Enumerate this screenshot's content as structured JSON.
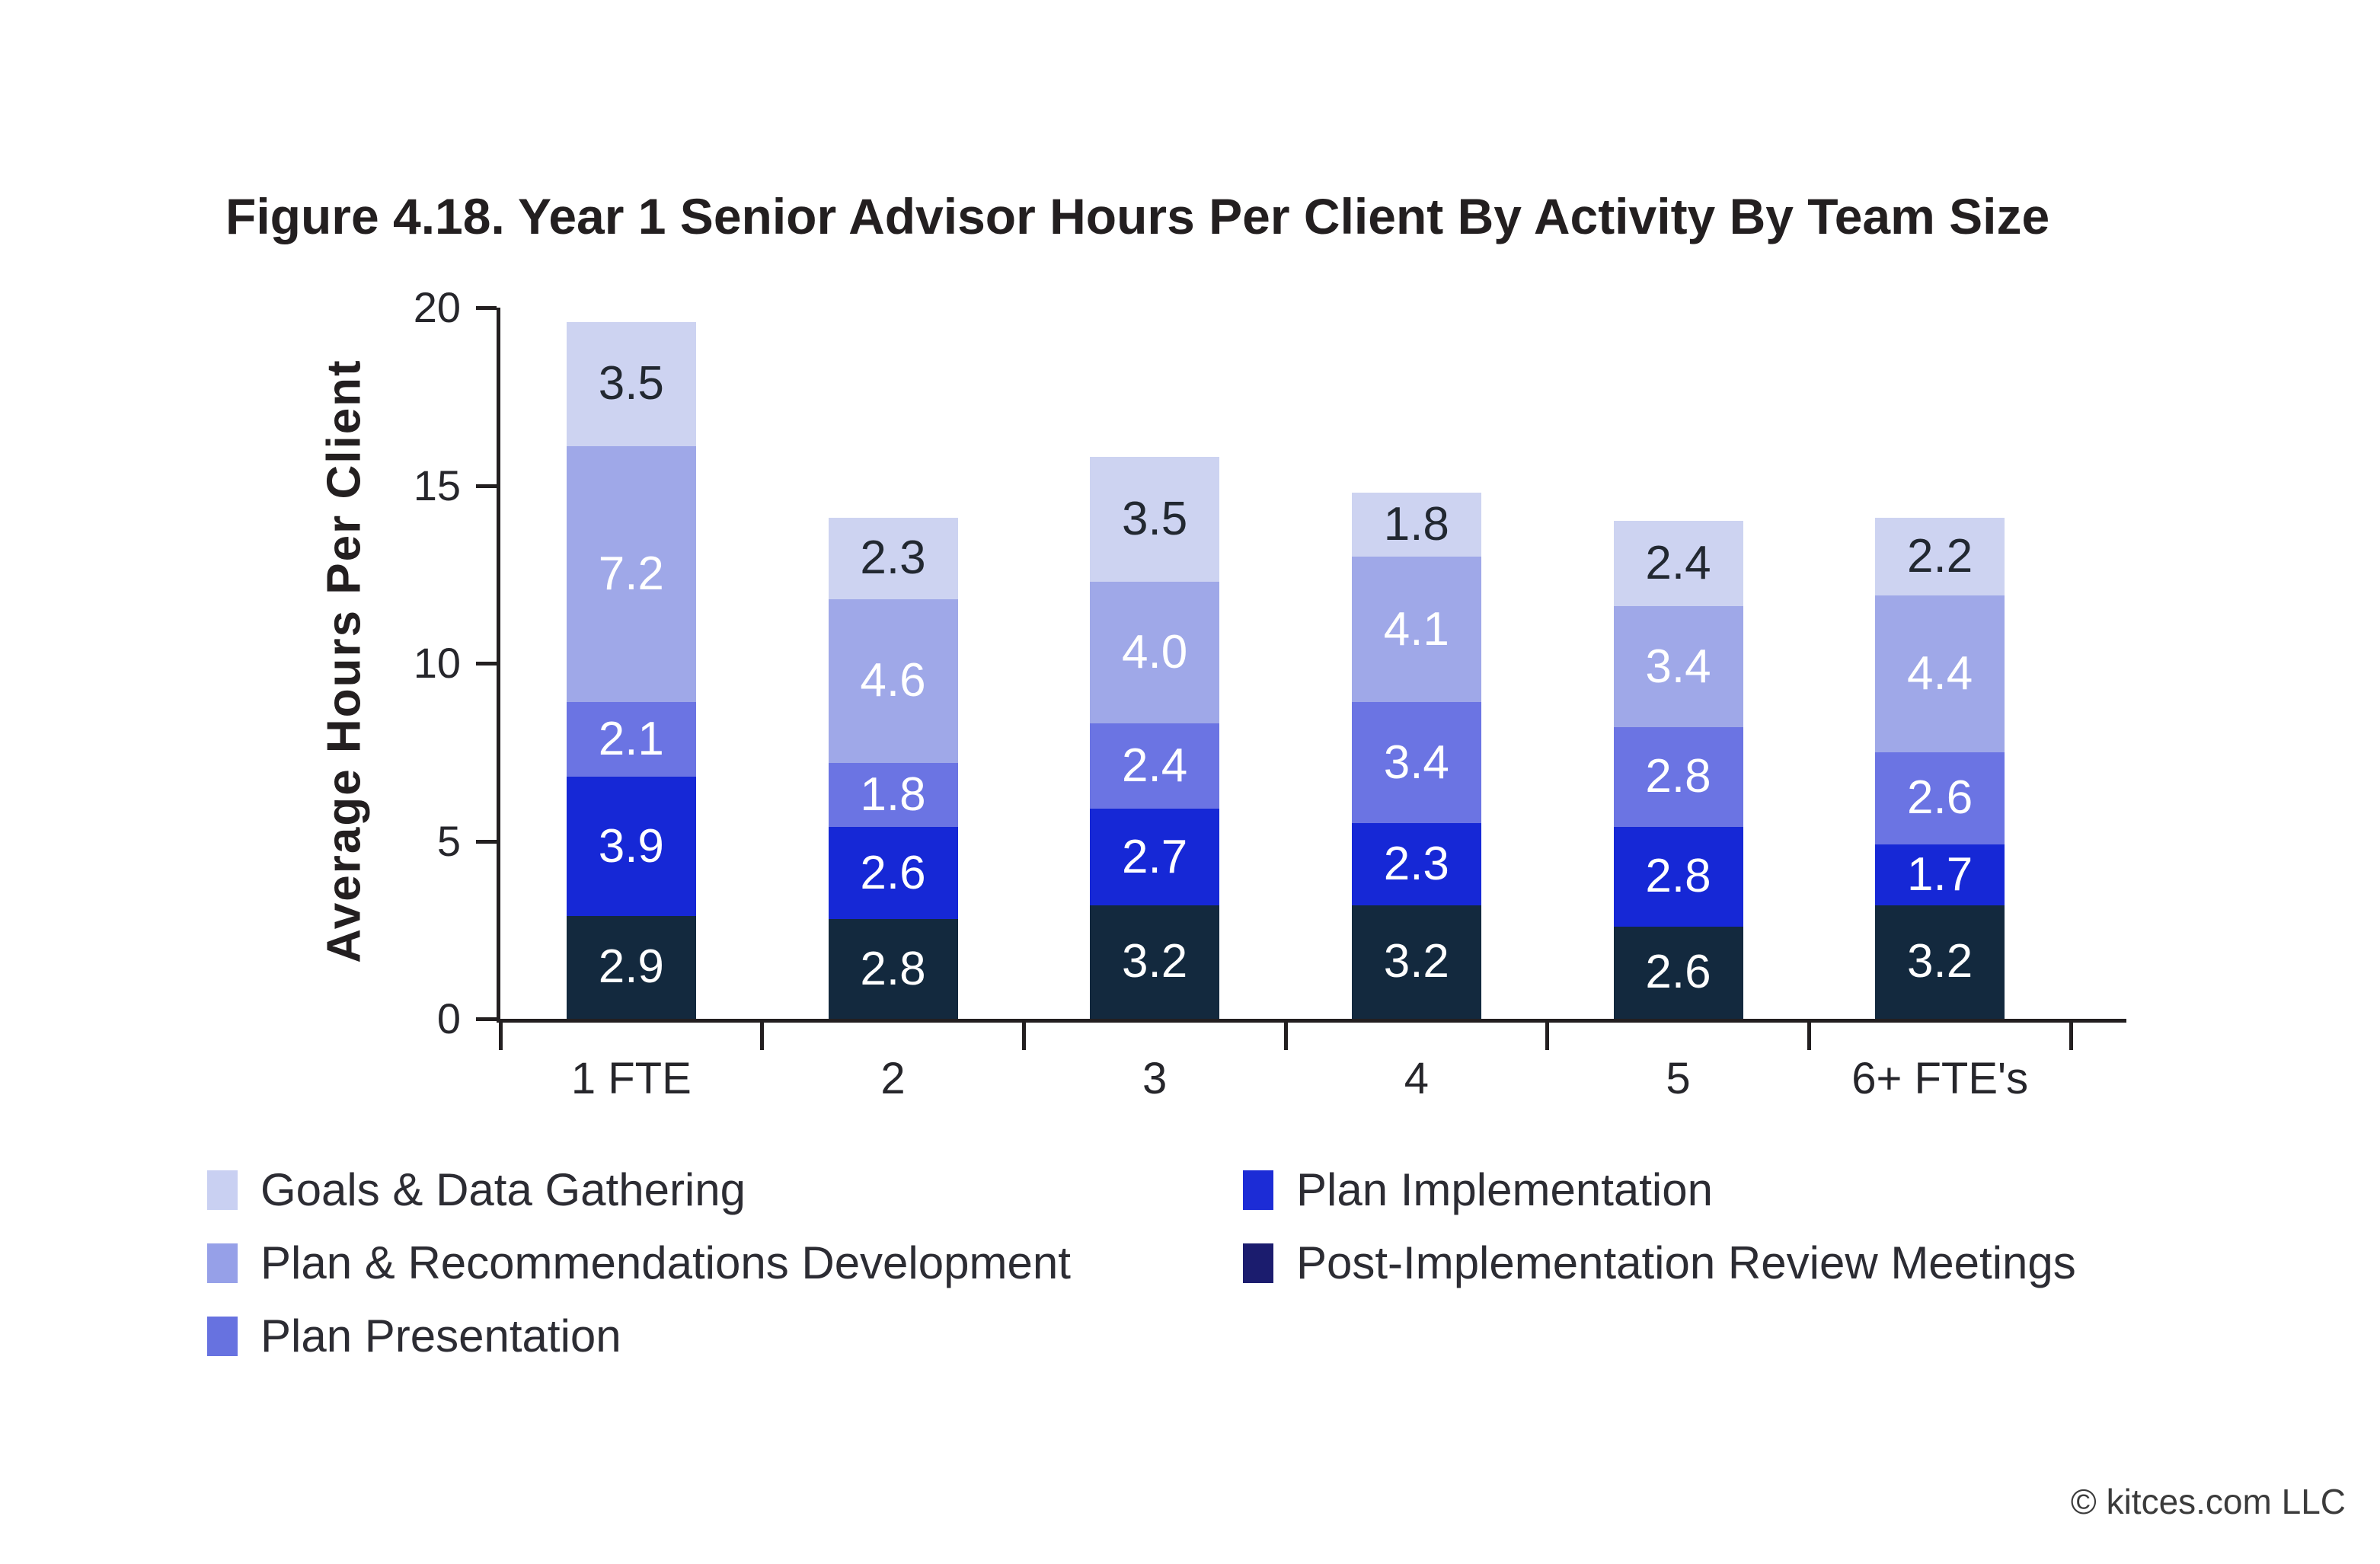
{
  "title": "Figure 4.18. Year 1 Senior Advisor Hours Per Client By Activity By Team Size",
  "chart_data": {
    "type": "bar",
    "stacked": true,
    "title": "Figure 4.18. Year 1 Senior Advisor Hours Per Client By Activity By Team Size",
    "xlabel": "",
    "ylabel": "Average Hours Per Client",
    "ylim": [
      0,
      20
    ],
    "yticks": [
      0,
      5,
      10,
      15,
      20
    ],
    "grid": false,
    "legend_position": "bottom",
    "categories": [
      "1 FTE",
      "2",
      "3",
      "4",
      "5",
      "6+ FTE's"
    ],
    "series": [
      {
        "name": "Post-Implementation Review Meetings",
        "color": "#13293e",
        "label_color": "#ffffff",
        "values": [
          2.9,
          2.8,
          3.2,
          3.2,
          2.6,
          3.2
        ]
      },
      {
        "name": "Plan Implementation",
        "color": "#1628d6",
        "label_color": "#ffffff",
        "values": [
          3.9,
          2.6,
          2.7,
          2.3,
          2.8,
          1.7
        ]
      },
      {
        "name": "Plan Presentation",
        "color": "#6b74e3",
        "label_color": "#ffffff",
        "values": [
          2.1,
          1.8,
          2.4,
          3.4,
          2.8,
          2.6
        ]
      },
      {
        "name": "Plan & Recommendations Development",
        "color": "#9fa8e8",
        "label_color": "#ffffff",
        "values": [
          7.2,
          4.6,
          4.0,
          4.1,
          3.4,
          4.4
        ]
      },
      {
        "name": "Goals & Data Gathering",
        "color": "#cdd3f1",
        "label_color": "#222831",
        "values": [
          3.5,
          2.3,
          3.5,
          1.8,
          2.4,
          2.2
        ]
      }
    ]
  },
  "legend": {
    "columns": [
      [
        {
          "label": "Goals & Data Gathering",
          "color": "#c9d0f2"
        },
        {
          "label": "Plan & Recommendations Development",
          "color": "#96a0e8"
        },
        {
          "label": "Plan Presentation",
          "color": "#6772e0"
        }
      ],
      [
        {
          "label": "Plan Implementation",
          "color": "#1c2cd6"
        },
        {
          "label": "Post-Implementation Review Meetings",
          "color": "#1b1c6e"
        }
      ]
    ]
  },
  "footer": {
    "copyright": "© kitces.com LLC"
  }
}
